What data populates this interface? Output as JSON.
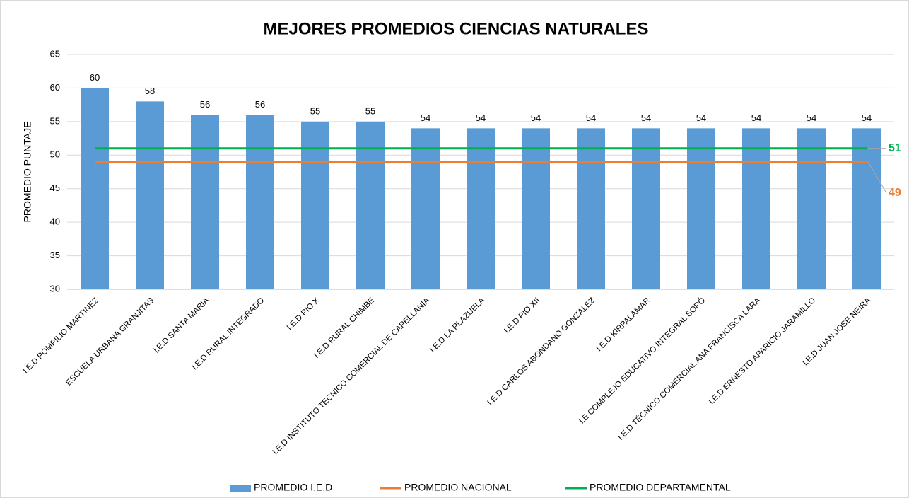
{
  "chart_data": {
    "type": "bar",
    "title": "MEJORES PROMEDIOS CIENCIAS NATURALES",
    "ylabel": "PROMEDIO PUNTAJE",
    "categories": [
      "I.E.D POMPILIO MARTINEZ",
      "ESCUELA URBANA GRANJITAS",
      "I.E.D SANTA MARIA",
      "I.E.D RURAL INTEGRADO",
      "I.E.D PIO X",
      "I.E.D RURAL CHIMBE",
      "I.E.D INSTITUTO TECNICO COMERCIAL DE CAPELLANIA",
      "I.E.D LA PLAZUELA",
      "I.E.D PIO XII",
      "I.E.D CARLOS ABONDANO GONZALEZ",
      "I.E.D KIRPALAMAR",
      "I.E COMPLEJO EDUCATIVO INTEGRAL SOPÓ",
      "I.E.D TÉCNICO COMERCIAL ANA FRANCISCA LARA",
      "I.E.D ERNESTO APARICIO JARAMILLO",
      "I.E.D JUAN JOSE NEIRA"
    ],
    "series": [
      {
        "name": "PROMEDIO I.E.D",
        "type": "bar",
        "color": "#5b9bd5",
        "values": [
          60,
          58,
          56,
          56,
          55,
          55,
          54,
          54,
          54,
          54,
          54,
          54,
          54,
          54,
          54
        ]
      },
      {
        "name": "PROMEDIO NACIONAL",
        "type": "line",
        "color": "#ed7d31",
        "values": [
          49,
          49,
          49,
          49,
          49,
          49,
          49,
          49,
          49,
          49,
          49,
          49,
          49,
          49,
          49
        ]
      },
      {
        "name": "PROMEDIO DEPARTAMENTAL",
        "type": "line",
        "color": "#00b050",
        "values": [
          51,
          51,
          51,
          51,
          51,
          51,
          51,
          51,
          51,
          51,
          51,
          51,
          51,
          51,
          51
        ]
      }
    ],
    "ylim": [
      30,
      65
    ],
    "yticks": [
      30,
      35,
      40,
      45,
      50,
      55,
      60,
      65
    ],
    "grid": true,
    "legend": "bottom"
  }
}
